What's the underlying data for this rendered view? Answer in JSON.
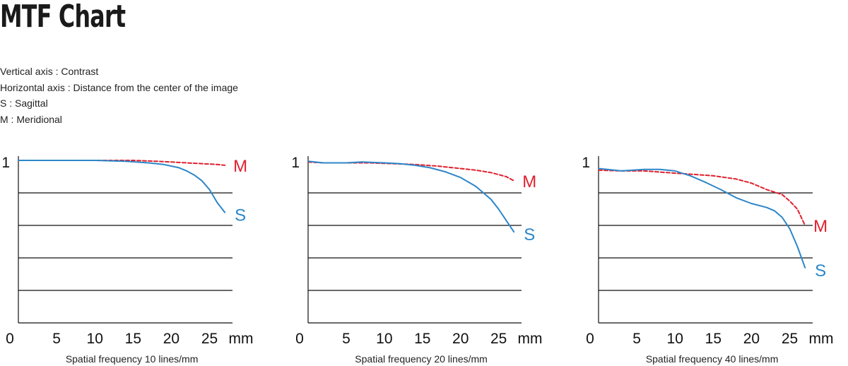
{
  "page": {
    "title": "MTF Chart",
    "legend": [
      "Vertical axis : Contrast",
      "Horizontal axis : Distance from the center of the image",
      "S : Sagittal",
      "M : Meridional"
    ]
  },
  "colors": {
    "sagittal": "#2c86c9",
    "meridional": "#e0202e",
    "axis": "#111111",
    "grid": "#111111"
  },
  "chart_data": [
    {
      "type": "line",
      "caption": "Spatial frequency 10 lines/mm",
      "x_ticks": [
        "0",
        "5",
        "10",
        "15",
        "20",
        "25"
      ],
      "x_unit": "mm",
      "y_ticks": [
        "1"
      ],
      "xlim": [
        0,
        28
      ],
      "ylim": [
        0,
        1
      ],
      "gridlines_y": [
        0.2,
        0.4,
        0.6,
        0.8
      ],
      "series": [
        {
          "name": "M",
          "style": "dashed",
          "x": [
            0,
            5,
            10,
            15,
            18,
            20,
            22,
            24,
            26,
            27
          ],
          "y": [
            1.0,
            1.0,
            1.0,
            1.0,
            0.995,
            0.99,
            0.985,
            0.98,
            0.975,
            0.97
          ]
        },
        {
          "name": "S",
          "style": "solid",
          "x": [
            0,
            5,
            10,
            14,
            17,
            19,
            21,
            22,
            23,
            24,
            25,
            26,
            27
          ],
          "y": [
            1.0,
            1.0,
            1.0,
            0.995,
            0.985,
            0.975,
            0.955,
            0.935,
            0.91,
            0.875,
            0.82,
            0.74,
            0.68
          ]
        }
      ]
    },
    {
      "type": "line",
      "caption": "Spatial frequency 20 lines/mm",
      "x_ticks": [
        "0",
        "5",
        "10",
        "15",
        "20",
        "25"
      ],
      "x_unit": "mm",
      "y_ticks": [
        "1"
      ],
      "xlim": [
        0,
        28
      ],
      "ylim": [
        0,
        1
      ],
      "gridlines_y": [
        0.2,
        0.4,
        0.6,
        0.8
      ],
      "series": [
        {
          "name": "M",
          "style": "dashed",
          "x": [
            0,
            2,
            5,
            8,
            11,
            14,
            17,
            20,
            22,
            24,
            26,
            27
          ],
          "y": [
            0.99,
            0.985,
            0.985,
            0.985,
            0.98,
            0.975,
            0.965,
            0.95,
            0.94,
            0.925,
            0.9,
            0.875
          ]
        },
        {
          "name": "S",
          "style": "solid",
          "x": [
            0,
            2,
            5,
            7,
            10,
            12,
            14,
            16,
            18,
            20,
            22,
            24,
            25,
            26,
            27
          ],
          "y": [
            0.995,
            0.985,
            0.985,
            0.99,
            0.985,
            0.98,
            0.97,
            0.955,
            0.93,
            0.895,
            0.84,
            0.76,
            0.7,
            0.63,
            0.56
          ]
        }
      ]
    },
    {
      "type": "line",
      "caption": "Spatial frequency 40 lines/mm",
      "x_ticks": [
        "0",
        "5",
        "10",
        "15",
        "20",
        "25"
      ],
      "x_unit": "mm",
      "y_ticks": [
        "1"
      ],
      "xlim": [
        0,
        28
      ],
      "ylim": [
        0,
        1
      ],
      "gridlines_y": [
        0.2,
        0.4,
        0.6,
        0.8
      ],
      "series": [
        {
          "name": "M",
          "style": "dashed",
          "x": [
            0,
            3,
            6,
            9,
            12,
            15,
            18,
            20,
            22,
            24,
            25,
            26,
            27
          ],
          "y": [
            0.94,
            0.935,
            0.935,
            0.925,
            0.915,
            0.905,
            0.885,
            0.86,
            0.82,
            0.79,
            0.75,
            0.7,
            0.6
          ]
        },
        {
          "name": "S",
          "style": "solid",
          "x": [
            0,
            3,
            6,
            8,
            10,
            12,
            14,
            16,
            18,
            20,
            22,
            23,
            24,
            25,
            26,
            27
          ],
          "y": [
            0.95,
            0.935,
            0.945,
            0.945,
            0.935,
            0.905,
            0.865,
            0.82,
            0.77,
            0.735,
            0.71,
            0.69,
            0.65,
            0.58,
            0.47,
            0.34
          ]
        }
      ]
    }
  ]
}
